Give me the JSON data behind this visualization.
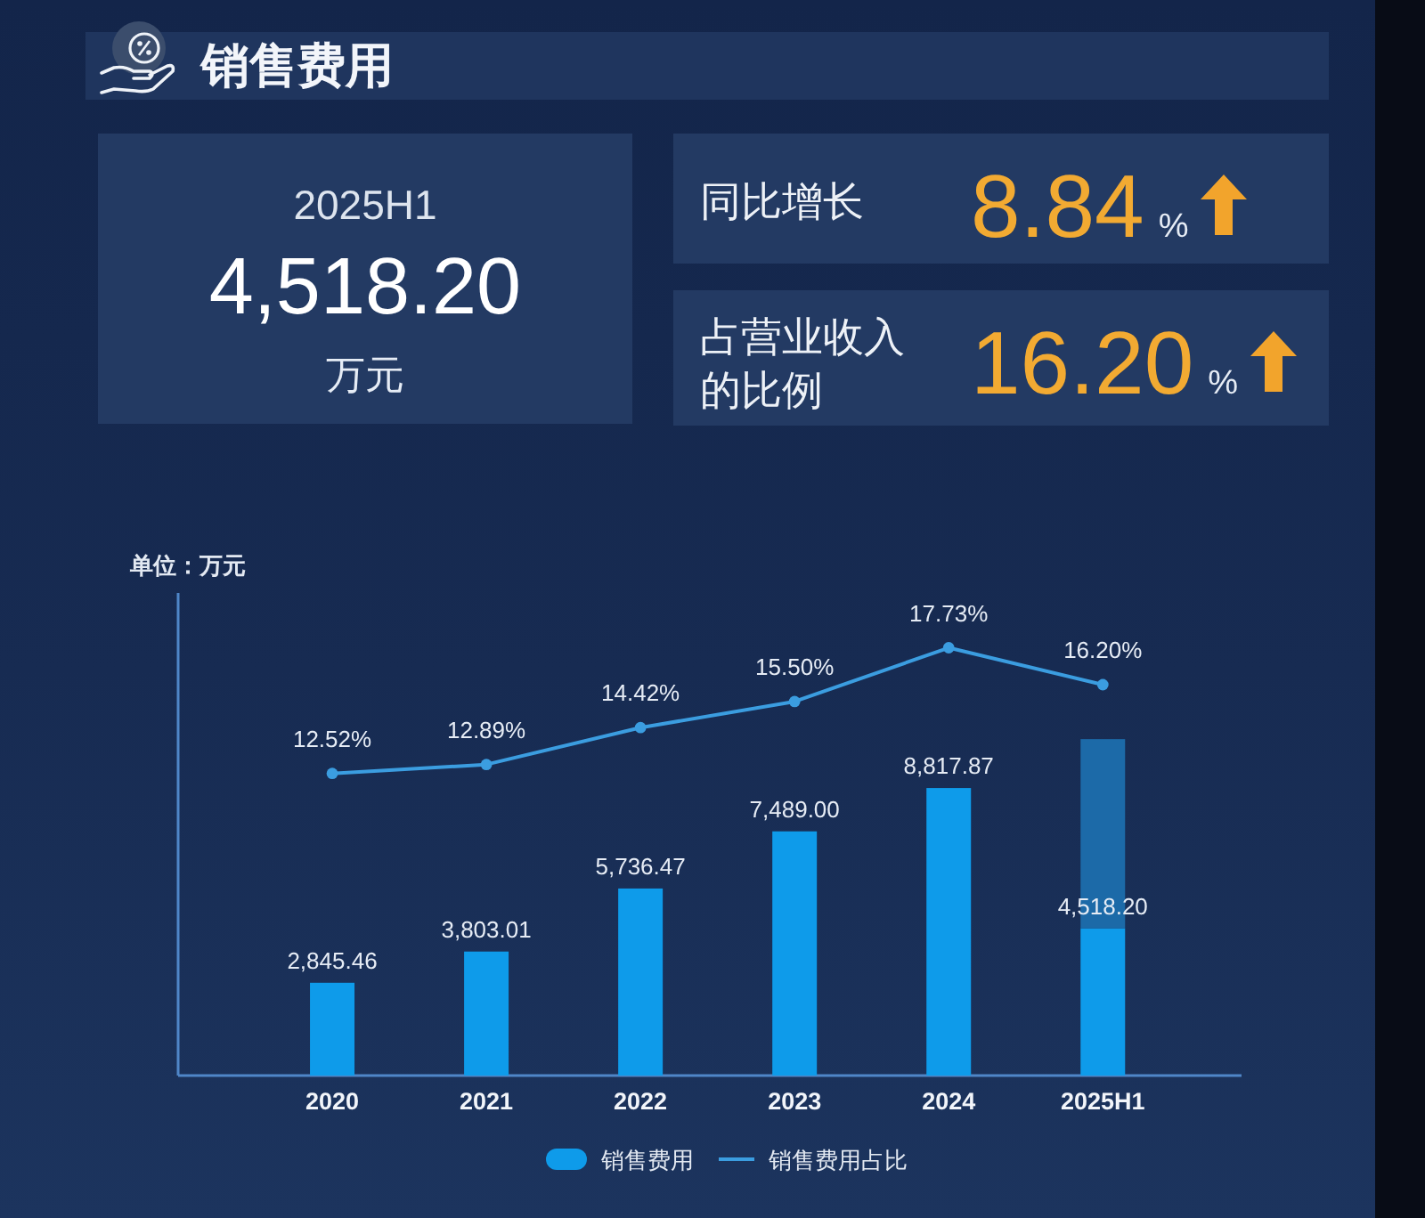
{
  "chart_data": [
    {
      "type": "other",
      "title": "销售费用",
      "annotations": [
        "2025H1",
        "4,518.20",
        "万元",
        "同比增长",
        "8.84",
        "%",
        "占营业收入的比例",
        "16.20",
        "%"
      ]
    },
    {
      "type": "bar",
      "categories": [
        "2020",
        "2021",
        "2022",
        "2023",
        "2024",
        "2025H1"
      ],
      "ylabel": "单位：万元",
      "stacked": true,
      "marker": "circle",
      "legend": "bottom",
      "ylim": [
        0,
        14800
      ],
      "y2lim": [
        0,
        20
      ],
      "series": [
        {
          "name": "销售费用",
          "type": "bar",
          "color": "#0e9bea",
          "values": [
            2845.46,
            3803.01,
            5736.47,
            7489.0,
            8817.87,
            4518.2
          ],
          "value_labels": [
            "2,845.46",
            "3,803.01",
            "5,736.47",
            "7,489.00",
            "8,817.87",
            "4,518.20"
          ]
        },
        {
          "type": "bar",
          "color": "#1c6aa8",
          "values": [
            null,
            null,
            null,
            null,
            null,
            5800
          ]
        },
        {
          "name": "销售费用占比",
          "type": "line",
          "axis": "y2",
          "color": "#3b9de0",
          "values": [
            12.52,
            12.89,
            14.42,
            15.5,
            17.73,
            16.2
          ],
          "value_labels": [
            "12.52%",
            "12.89%",
            "14.42%",
            "15.50%",
            "17.73%",
            "16.20%"
          ]
        }
      ]
    }
  ]
}
